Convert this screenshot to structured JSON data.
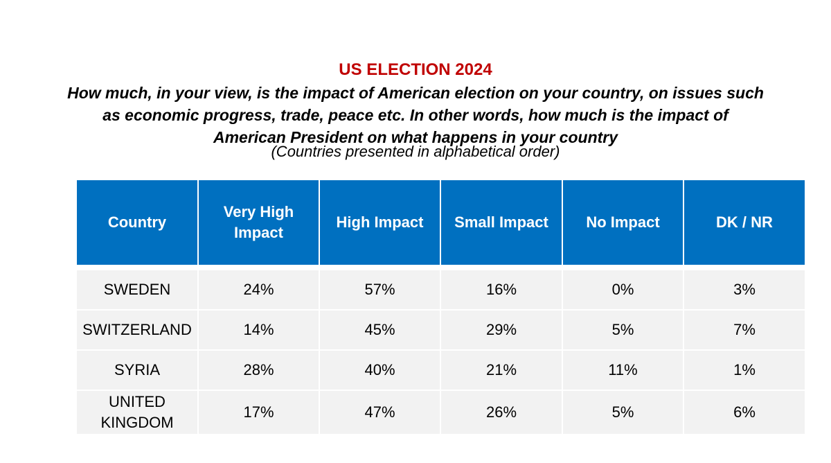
{
  "header": {
    "title": "US ELECTION 2024",
    "question": "How much, in your view, is the impact of American election on your country, on issues such as economic progress, trade, peace etc. In other words, how much is the impact of American President on what happens in your country",
    "note": "(Countries presented in alphabetical order)"
  },
  "table": {
    "columns": [
      "Country",
      "Very High Impact",
      "High Impact",
      "Small Impact",
      "No Impact",
      "DK / NR"
    ],
    "rows": [
      [
        "SWEDEN",
        "24%",
        "57%",
        "16%",
        "0%",
        "3%"
      ],
      [
        "SWITZERLAND",
        "14%",
        "45%",
        "29%",
        "5%",
        "7%"
      ],
      [
        "SYRIA",
        "28%",
        "40%",
        "21%",
        "11%",
        "1%"
      ],
      [
        "UNITED KINGDOM",
        "17%",
        "47%",
        "26%",
        "5%",
        "6%"
      ]
    ]
  },
  "colors": {
    "title": "#c00000",
    "header_bg": "#0070c0",
    "row_bg": "#f2f2f2"
  }
}
